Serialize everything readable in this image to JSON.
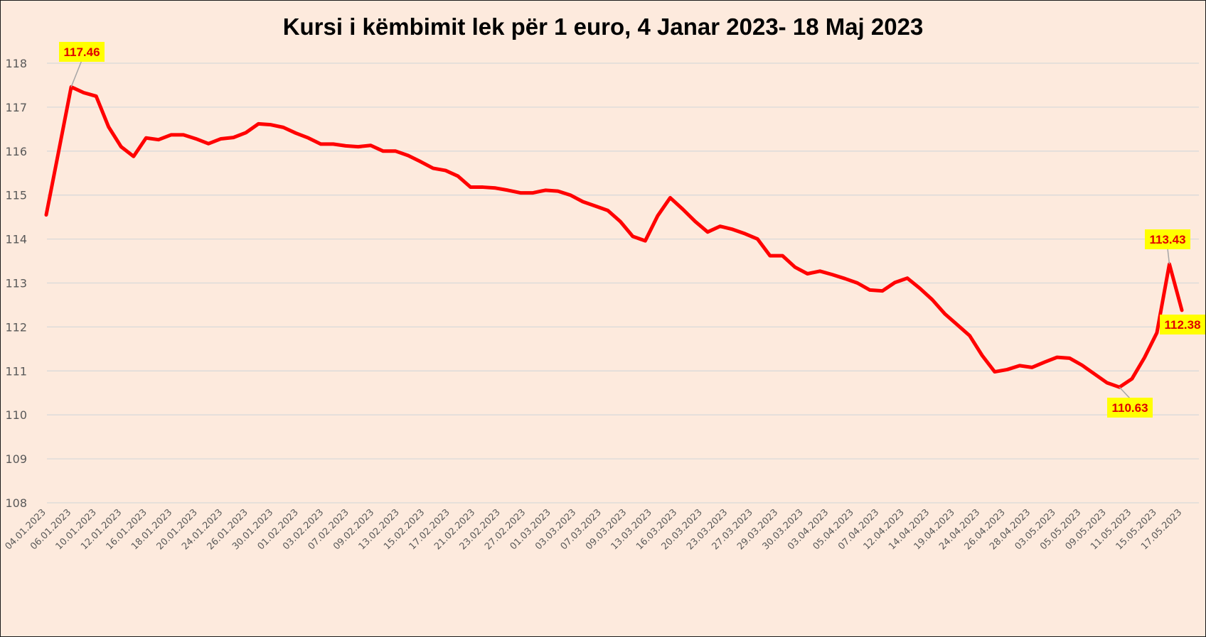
{
  "chart_data": {
    "type": "line",
    "title": "Kursi i këmbimit lek për 1 euro, 4 Janar 2023- 18 Maj 2023",
    "xlabel": "",
    "ylabel": "",
    "ylim": [
      108,
      118
    ],
    "yticks": [
      "108",
      "109",
      "110",
      "111",
      "112",
      "113",
      "114",
      "115",
      "116",
      "117",
      "118"
    ],
    "grid": true,
    "legend": "none",
    "line_color": "#ff0000",
    "background_color": "#fdeadd",
    "callout_color": "#ffff00",
    "x_tick_labels": [
      "04.01.2023",
      "06.01.2023",
      "10.01.2023",
      "12.01.2023",
      "16.01.2023",
      "18.01.2023",
      "20.01.2023",
      "24.01.2023",
      "26.01.2023",
      "30.01.2023",
      "01.02.2023",
      "03.02.2023",
      "07.02.2023",
      "09.02.2023",
      "13.02.2023",
      "15.02.2023",
      "17.02.2023",
      "21.02.2023",
      "23.02.2023",
      "27.02.2023",
      "01.03.2023",
      "03.03.2023",
      "07.03.2023",
      "09.03.2023",
      "13.03.2023",
      "16.03.2023",
      "20.03.2023",
      "23.03.2023",
      "27.03.2023",
      "29.03.2023",
      "30.03.2023",
      "03.04.2023",
      "05.04.2023",
      "07.04.2023",
      "12.04.2023",
      "14.04.2023",
      "19.04.2023",
      "24.04.2023",
      "26.04.2023",
      "28.04.2023",
      "03.05.2023",
      "05.05.2023",
      "09.05.2023",
      "11.05.2023",
      "15.05.2023",
      "17.05.2023"
    ],
    "values": [
      114.55,
      116.0,
      117.46,
      117.33,
      117.25,
      116.55,
      116.1,
      115.88,
      116.3,
      116.26,
      116.37,
      116.37,
      116.28,
      116.17,
      116.28,
      116.31,
      116.42,
      116.62,
      116.6,
      116.54,
      116.41,
      116.3,
      116.16,
      116.16,
      116.12,
      116.1,
      116.13,
      116.0,
      116.0,
      115.9,
      115.76,
      115.61,
      115.56,
      115.43,
      115.18,
      115.18,
      115.16,
      115.11,
      115.05,
      115.05,
      115.11,
      115.09,
      115.0,
      114.85,
      114.75,
      114.65,
      114.4,
      114.06,
      113.96,
      114.53,
      114.94,
      114.68,
      114.4,
      114.16,
      114.29,
      114.22,
      114.12,
      114.0,
      113.62,
      113.62,
      113.36,
      113.21,
      113.27,
      113.19,
      113.1,
      113.0,
      112.84,
      112.82,
      113.01,
      113.11,
      112.88,
      112.62,
      112.3,
      112.05,
      111.8,
      111.35,
      110.98,
      111.03,
      111.12,
      111.08,
      111.2,
      111.31,
      111.29,
      111.13,
      110.93,
      110.73,
      110.63,
      110.82,
      111.3,
      111.87,
      113.43,
      112.38
    ],
    "annotations": [
      {
        "text": "117.46",
        "index": 2
      },
      {
        "text": "110.63",
        "index": 86
      },
      {
        "text": "113.43",
        "index": 90
      },
      {
        "text": "112.38",
        "index": 91
      }
    ]
  }
}
